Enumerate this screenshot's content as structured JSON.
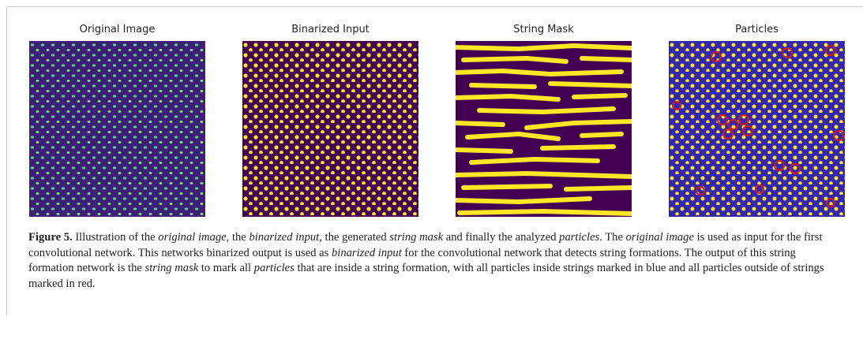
{
  "panels": [
    {
      "title": "Original Image"
    },
    {
      "title": "Binarized Input"
    },
    {
      "title": "String Mask"
    },
    {
      "title": "Particles"
    }
  ],
  "caption": {
    "label": "Figure 5.",
    "runs": [
      {
        "text": " Illustration of the ",
        "italic": false
      },
      {
        "text": "original image",
        "italic": true
      },
      {
        "text": ", the ",
        "italic": false
      },
      {
        "text": "binarized input",
        "italic": true
      },
      {
        "text": ", the generated ",
        "italic": false
      },
      {
        "text": "string mask",
        "italic": true
      },
      {
        "text": " and finally the analyzed ",
        "italic": false
      },
      {
        "text": "particles",
        "italic": true
      },
      {
        "text": ". The ",
        "italic": false
      },
      {
        "text": "original image",
        "italic": true
      },
      {
        "text": " is used as input for the first convolutional network. This networks binarized output is used as ",
        "italic": false
      },
      {
        "text": "binarized input",
        "italic": true
      },
      {
        "text": " for the convolutional network that detects string formations. The output of this string formation network is the ",
        "italic": false
      },
      {
        "text": "string mask",
        "italic": true
      },
      {
        "text": " to mark all ",
        "italic": false
      },
      {
        "text": "particles",
        "italic": true
      },
      {
        "text": " that are inside a string formation, with all particles inside strings marked in blue and all particles outside of strings marked in red.",
        "italic": false
      }
    ]
  }
}
